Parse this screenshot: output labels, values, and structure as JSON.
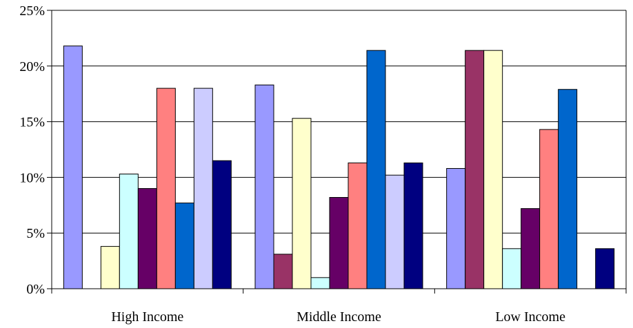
{
  "chart_data": {
    "type": "bar",
    "categories": [
      "High Income",
      "Middle Income",
      "Low Income"
    ],
    "series": [
      {
        "color": "#9999ff",
        "values": [
          21.8,
          18.3,
          10.8
        ]
      },
      {
        "color": "#993366",
        "values": [
          0,
          3.1,
          21.4
        ]
      },
      {
        "color": "#ffffcc",
        "values": [
          3.8,
          15.3,
          21.4
        ]
      },
      {
        "color": "#ccffff",
        "values": [
          10.3,
          1.0,
          3.6
        ]
      },
      {
        "color": "#660066",
        "values": [
          9.0,
          8.2,
          7.2
        ]
      },
      {
        "color": "#ff8080",
        "values": [
          18.0,
          11.3,
          14.3
        ]
      },
      {
        "color": "#0066cc",
        "values": [
          7.7,
          21.4,
          17.9
        ]
      },
      {
        "color": "#ccccff",
        "values": [
          18.0,
          10.2,
          0
        ]
      },
      {
        "color": "#000080",
        "values": [
          11.5,
          11.3,
          3.6
        ]
      }
    ],
    "y_ticks": [
      "0%",
      "5%",
      "10%",
      "15%",
      "20%",
      "25%"
    ],
    "ylim": [
      0,
      25
    ],
    "grid": true,
    "legend": "none",
    "title": "",
    "xlabel": "",
    "ylabel": ""
  }
}
